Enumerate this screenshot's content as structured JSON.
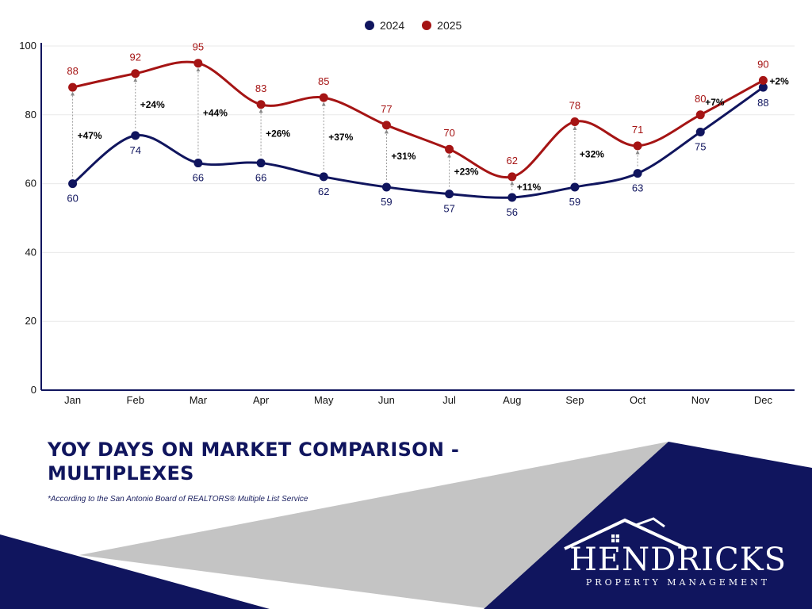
{
  "legend": [
    {
      "name": "2024",
      "color": "#10155e"
    },
    {
      "name": "2025",
      "color": "#a51414"
    }
  ],
  "chart_data": {
    "type": "line",
    "categories": [
      "Jan",
      "Feb",
      "Mar",
      "Apr",
      "May",
      "Jun",
      "Jul",
      "Aug",
      "Sep",
      "Oct",
      "Nov",
      "Dec"
    ],
    "series": [
      {
        "name": "2024",
        "color": "#10155e",
        "values": [
          60,
          74,
          66,
          66,
          62,
          59,
          57,
          56,
          59,
          63,
          75,
          88
        ]
      },
      {
        "name": "2025",
        "color": "#a51414",
        "values": [
          88,
          92,
          95,
          83,
          85,
          77,
          70,
          62,
          78,
          71,
          80,
          90
        ]
      }
    ],
    "change_labels": [
      "+47%",
      "+24%",
      "+44%",
      "+26%",
      "+37%",
      "+31%",
      "+23%",
      "+11%",
      "+32%",
      "",
      "+7%",
      "+2%"
    ],
    "yticks": [
      0,
      20,
      40,
      60,
      80,
      100
    ],
    "ylim": [
      0,
      100
    ],
    "grid": true,
    "legend_position": "top-center"
  },
  "title_lines": [
    "YOY DAYS ON MARKET COMPARISON -",
    "MULTIPLEXES"
  ],
  "footnote": "*According to the San Antonio Board of REALTORS® Multiple List Service",
  "logo": {
    "name": "HENDRICKS",
    "tagline": "PROPERTY MANAGEMENT"
  },
  "colors": {
    "navy": "#10155e",
    "red": "#a51414",
    "gray": "#c4c4c4"
  }
}
